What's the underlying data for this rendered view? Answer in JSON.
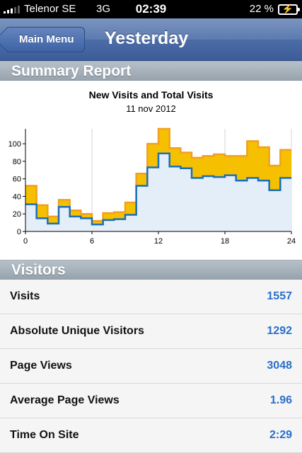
{
  "status_bar": {
    "carrier": "Telenor SE",
    "network": "3G",
    "time": "02:39",
    "battery": "22 %"
  },
  "nav": {
    "back_label": "Main Menu",
    "title": "Yesterday"
  },
  "summary": {
    "header": "Summary Report"
  },
  "chart_data": {
    "type": "area",
    "title": "New Visits and Total Visits",
    "subtitle": "11 nov 2012",
    "xlabel": "",
    "ylabel": "",
    "x": [
      0,
      1,
      2,
      3,
      4,
      5,
      6,
      7,
      8,
      9,
      10,
      11,
      12,
      13,
      14,
      15,
      16,
      17,
      18,
      19,
      20,
      21,
      22,
      23,
      24
    ],
    "xlim": [
      0,
      24
    ],
    "ylim": [
      0,
      117
    ],
    "xticks": [
      0,
      6,
      12,
      18,
      24
    ],
    "yticks": [
      0,
      20,
      40,
      60,
      80,
      100
    ],
    "grid": true,
    "colors": {
      "total": "#f5c000",
      "total_edge": "#f0a020",
      "new": "#1a6fb8",
      "new_fill": "#e4eef9"
    },
    "series": [
      {
        "values": [
          52,
          30,
          17,
          36,
          24,
          20,
          12,
          21,
          22,
          33,
          66,
          100,
          117,
          95,
          90,
          84,
          86,
          88,
          86,
          86,
          103,
          96,
          75,
          93,
          93
        ]
      },
      {
        "values": [
          31,
          15,
          9,
          28,
          17,
          15,
          8,
          13,
          14,
          19,
          52,
          73,
          89,
          74,
          72,
          61,
          63,
          62,
          64,
          58,
          61,
          58,
          47,
          61,
          61
        ]
      }
    ]
  },
  "visitors": {
    "header": "Visitors",
    "rows": [
      {
        "label": "Visits",
        "value": "1557"
      },
      {
        "label": "Absolute Unique Visitors",
        "value": "1292"
      },
      {
        "label": "Page Views",
        "value": "3048"
      },
      {
        "label": "Average Page Views",
        "value": "1.96"
      },
      {
        "label": "Time On Site",
        "value": "2:29"
      }
    ]
  }
}
